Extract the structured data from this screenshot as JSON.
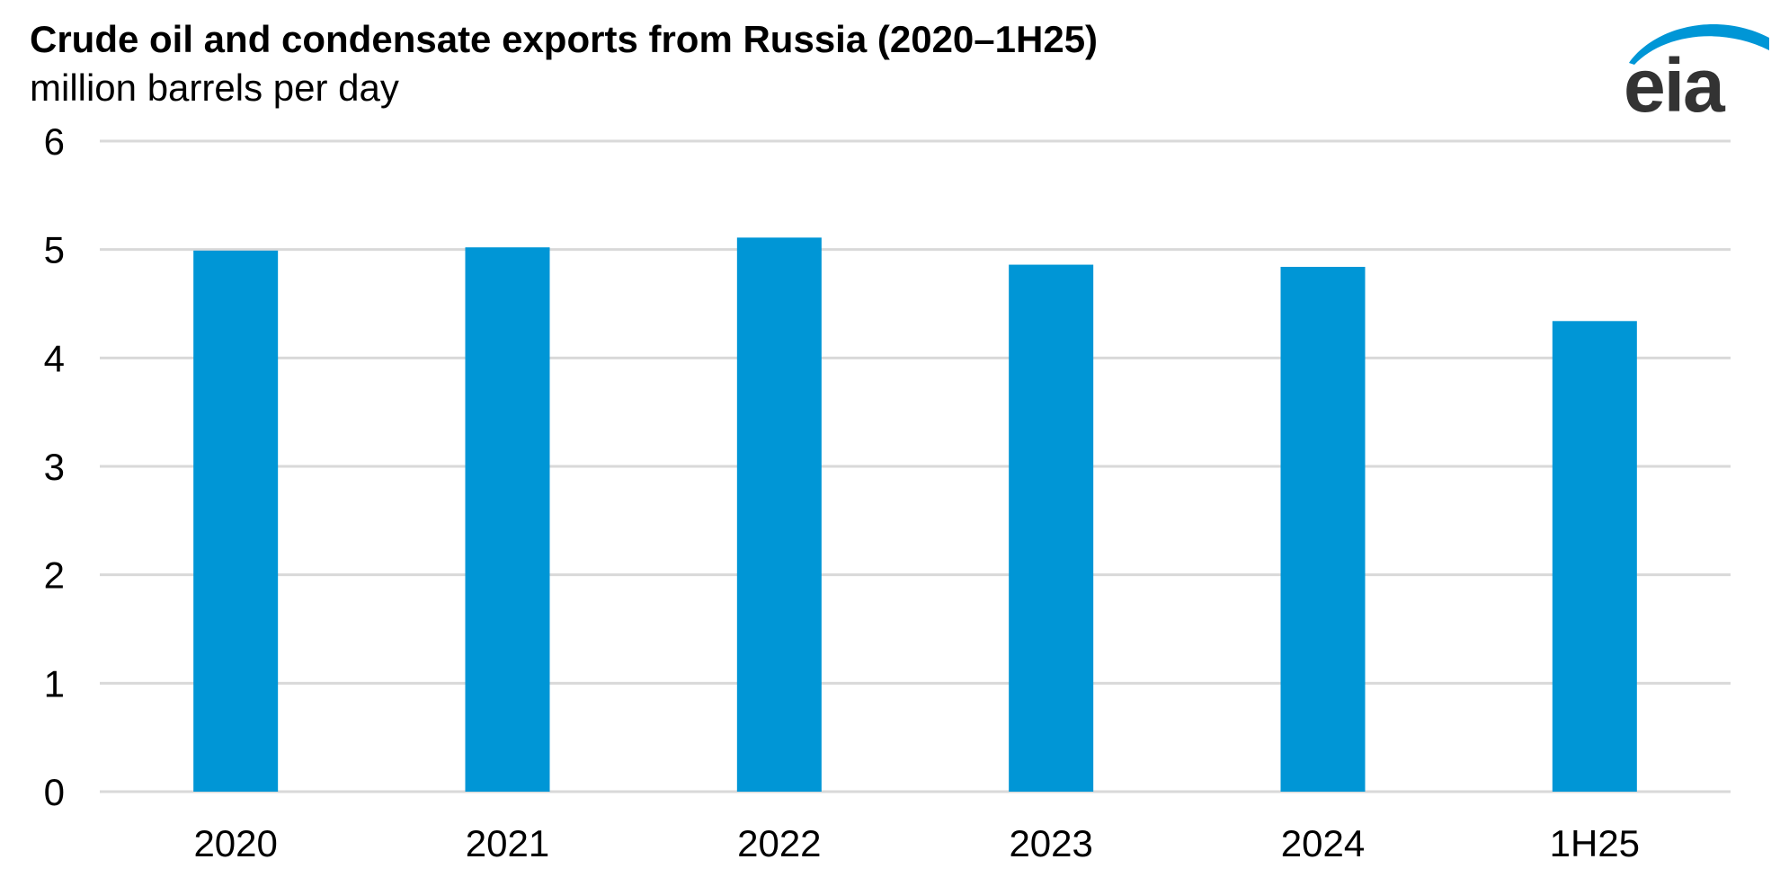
{
  "logo": {
    "text": "eia",
    "arc_color": "#0096d6",
    "text_color": "#333333"
  },
  "chart_data": {
    "type": "bar",
    "title": "Crude oil and condensate exports from Russia (2020–1H25)",
    "subtitle": "million barrels per day",
    "categories": [
      "2020",
      "2021",
      "2022",
      "2023",
      "2024",
      "1H25"
    ],
    "values": [
      4.99,
      5.02,
      5.11,
      4.86,
      4.84,
      4.34
    ],
    "ylim": [
      0,
      6
    ],
    "yticks": [
      0,
      1,
      2,
      3,
      4,
      5,
      6
    ],
    "grid": true,
    "legend": "none",
    "bar_color": "#0096d6",
    "grid_color": "#d9d9d9"
  }
}
